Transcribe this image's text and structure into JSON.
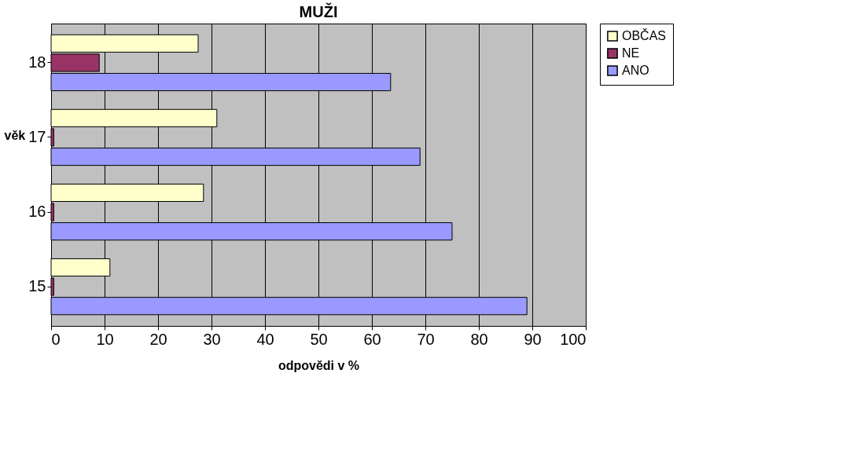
{
  "chart_data": {
    "type": "bar",
    "orientation": "horizontal",
    "title": "MUŽI",
    "xlabel": "odpovědi v %",
    "ylabel": "věk",
    "categories": [
      "18",
      "17",
      "16",
      "15"
    ],
    "series": [
      {
        "name": "OBČAS",
        "color": "#ffffcc",
        "values": [
          27.5,
          31,
          28.5,
          11
        ]
      },
      {
        "name": "NE",
        "color": "#993366",
        "values": [
          9,
          0.5,
          0.5,
          0.5
        ]
      },
      {
        "name": "ANO",
        "color": "#9999ff",
        "values": [
          63.5,
          69,
          75,
          89
        ]
      }
    ],
    "xlim": [
      0,
      100
    ],
    "xticks": [
      0,
      10,
      20,
      30,
      40,
      50,
      60,
      70,
      80,
      90,
      100
    ],
    "grid": "x",
    "legend": "right"
  }
}
